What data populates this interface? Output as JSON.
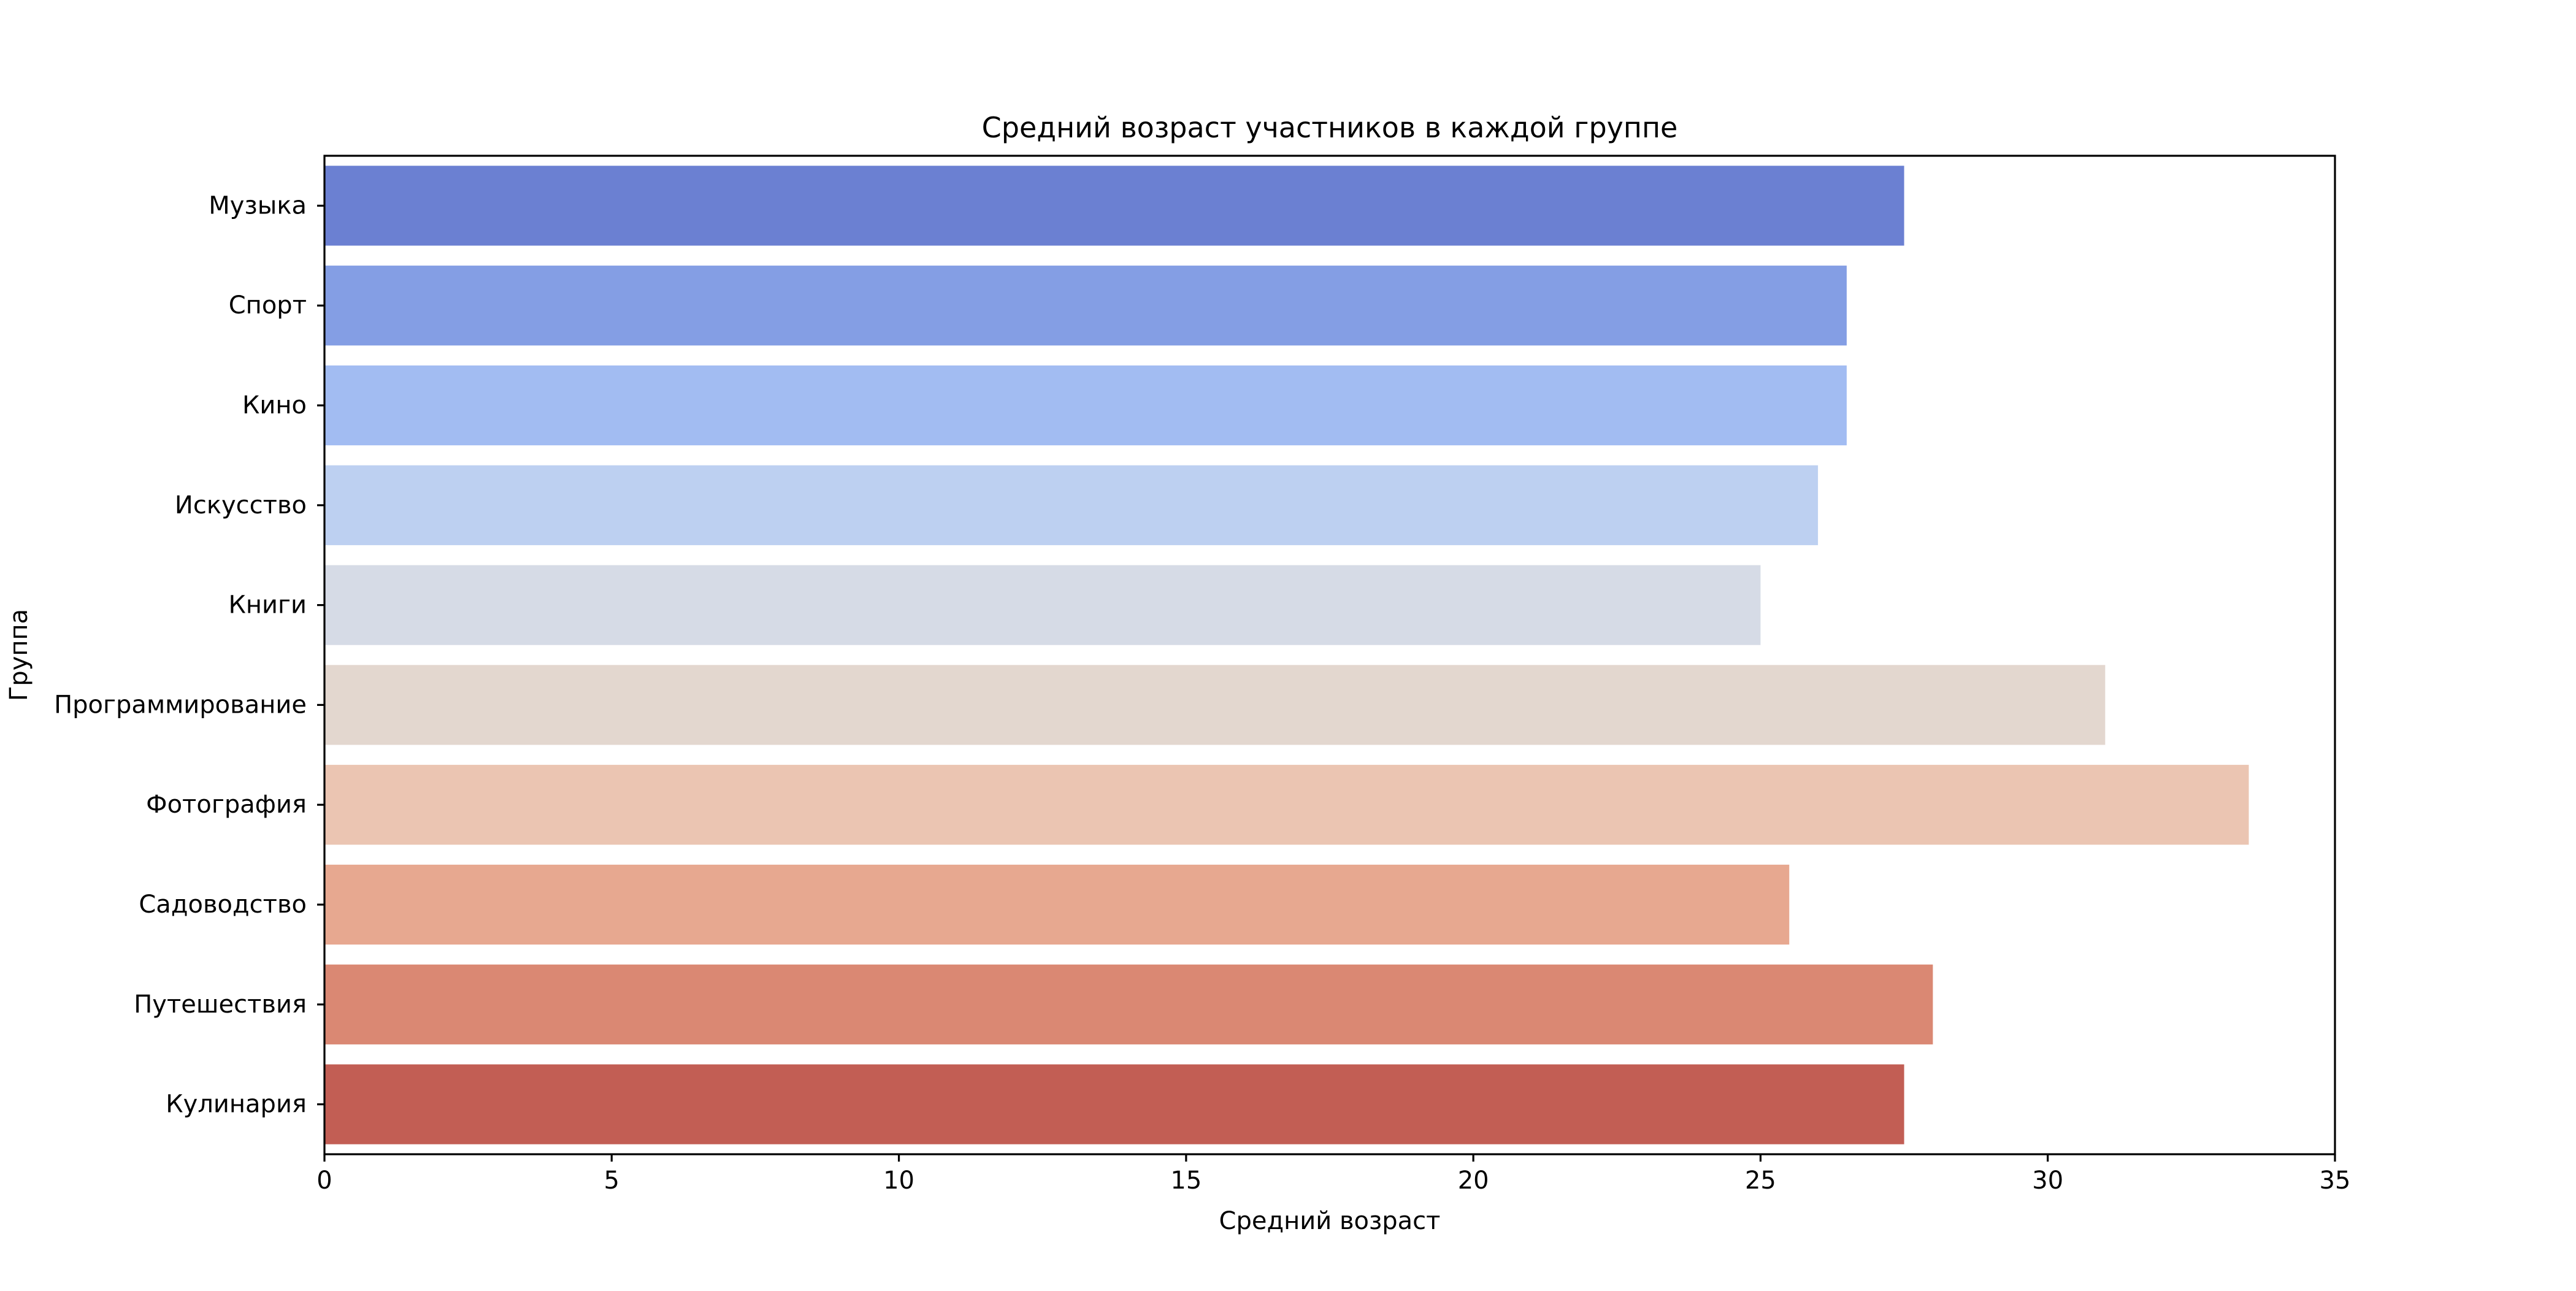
{
  "chart_data": {
    "type": "bar",
    "orientation": "horizontal",
    "title": "Средний возраст участников в каждой группе",
    "xlabel": "Средний возраст",
    "ylabel": "Группа",
    "xlim": [
      0,
      35
    ],
    "xticks": [
      "0",
      "5",
      "10",
      "15",
      "20",
      "25",
      "30",
      "35"
    ],
    "categories": [
      "Музыка",
      "Спорт",
      "Кино",
      "Искусство",
      "Книги",
      "Программирование",
      "Фотография",
      "Садоводство",
      "Путешествия",
      "Кулинария"
    ],
    "values": [
      27.5,
      26.5,
      26.5,
      26.0,
      25.0,
      31.0,
      33.5,
      25.5,
      28.0,
      27.5
    ],
    "colors": [
      "#6b80d2",
      "#849ee4",
      "#a2bcf2",
      "#bdd0f1",
      "#d6dbe6",
      "#e3d7cf",
      "#ebc5b2",
      "#e7a890",
      "#da8873",
      "#c25e54"
    ],
    "grid": false,
    "legend": "none"
  }
}
